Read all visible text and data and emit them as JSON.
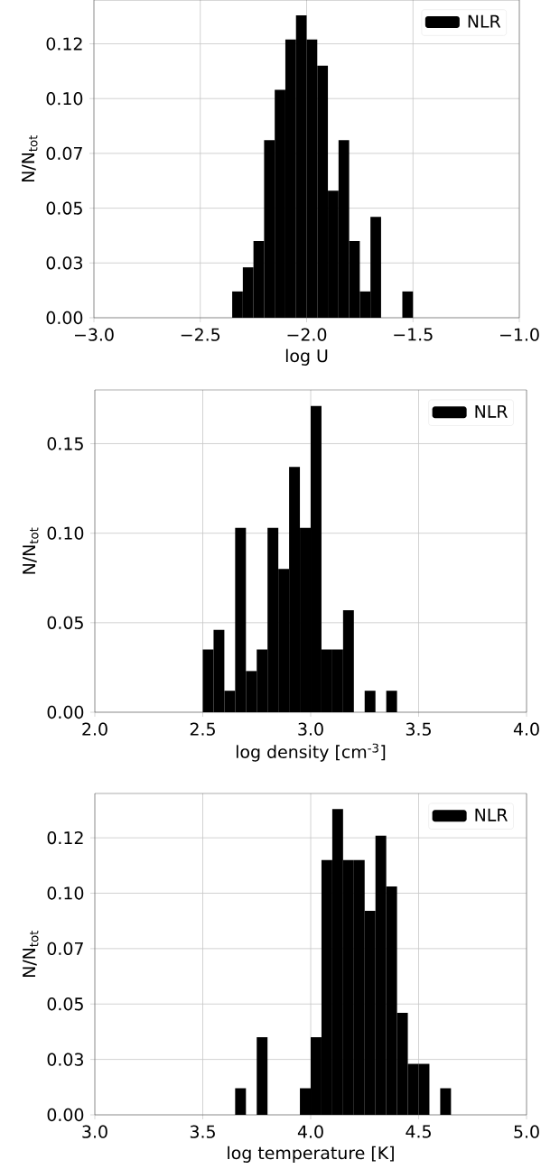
{
  "chart_data": [
    {
      "type": "histogram",
      "xlabel": "log U",
      "ylabel": "N/N$_{tot}$",
      "legend": "top right",
      "grid": true,
      "xlim": [
        -3.0,
        -1.0
      ],
      "xticks": [
        {
          "value": -3.0,
          "label": "−3.0"
        },
        {
          "value": -2.5,
          "label": "−2.5"
        },
        {
          "value": -2.0,
          "label": "−2.0"
        },
        {
          "value": -1.5,
          "label": "−1.5"
        },
        {
          "value": -1.0,
          "label": "−1.0"
        }
      ],
      "ylim": [
        0,
        0.145
      ],
      "yticks": [
        {
          "value": 0,
          "label": "0.00"
        },
        {
          "value": 0.025,
          "label": "0.03"
        },
        {
          "value": 0.05,
          "label": "0.05"
        },
        {
          "value": 0.075,
          "label": "0.07"
        },
        {
          "value": 0.1,
          "label": "0.10"
        },
        {
          "value": 0.125,
          "label": "0.12"
        }
      ],
      "bins": [
        -2.35,
        -2.3,
        -2.25,
        -2.2,
        -2.15,
        -2.1,
        -2.05,
        -2.0,
        -1.95,
        -1.9,
        -1.85,
        -1.8,
        -1.75,
        -1.7,
        -1.65,
        -1.6,
        -1.55,
        -1.5
      ],
      "series": [
        {
          "name": "NLR",
          "color": "#000000",
          "values": [
            0.012,
            0.023,
            0.035,
            0.081,
            0.104,
            0.127,
            0.138,
            0.127,
            0.115,
            0.058,
            0.081,
            0.035,
            0.012,
            0.046,
            0,
            0,
            0.012
          ]
        }
      ]
    },
    {
      "type": "histogram",
      "xlabel": "log density [cm$^{-3}$]",
      "ylabel": "N/N$_{tot}$",
      "legend": "top right",
      "grid": true,
      "xlim": [
        2.0,
        4.0
      ],
      "xticks": [
        {
          "value": 2.0,
          "label": "2.0"
        },
        {
          "value": 2.5,
          "label": "2.5"
        },
        {
          "value": 3.0,
          "label": "3.0"
        },
        {
          "value": 3.5,
          "label": "3.5"
        },
        {
          "value": 4.0,
          "label": "4.0"
        }
      ],
      "ylim": [
        0,
        0.18
      ],
      "yticks": [
        {
          "value": 0,
          "label": "0.00"
        },
        {
          "value": 0.05,
          "label": "0.05"
        },
        {
          "value": 0.1,
          "label": "0.10"
        },
        {
          "value": 0.15,
          "label": "0.15"
        }
      ],
      "bins": [
        2.5,
        2.55,
        2.6,
        2.65,
        2.7,
        2.75,
        2.8,
        2.85,
        2.9,
        2.95,
        3.0,
        3.05,
        3.1,
        3.15,
        3.2,
        3.25,
        3.3,
        3.35,
        3.4
      ],
      "series": [
        {
          "name": "NLR",
          "color": "#000000",
          "values": [
            0.035,
            0.046,
            0.012,
            0.103,
            0.023,
            0.035,
            0.103,
            0.08,
            0.137,
            0.103,
            0.171,
            0.035,
            0.035,
            0.057,
            0,
            0.012,
            0,
            0.012
          ]
        }
      ]
    },
    {
      "type": "histogram",
      "xlabel": "log temperature [K]",
      "ylabel": "N/N$_{tot}$",
      "legend": "top right",
      "grid": true,
      "xlim": [
        3.0,
        5.0
      ],
      "xticks": [
        {
          "value": 3.0,
          "label": "3.0"
        },
        {
          "value": 3.5,
          "label": "3.5"
        },
        {
          "value": 4.0,
          "label": "4.0"
        },
        {
          "value": 4.5,
          "label": "4.5"
        },
        {
          "value": 5.0,
          "label": "5.0"
        }
      ],
      "ylim": [
        0,
        0.145
      ],
      "yticks": [
        {
          "value": 0,
          "label": "0.00"
        },
        {
          "value": 0.025,
          "label": "0.03"
        },
        {
          "value": 0.05,
          "label": "0.05"
        },
        {
          "value": 0.075,
          "label": "0.07"
        },
        {
          "value": 0.1,
          "label": "0.10"
        },
        {
          "value": 0.125,
          "label": "0.12"
        }
      ],
      "bins": [
        3.65,
        3.7,
        3.75,
        3.8,
        3.85,
        3.9,
        3.95,
        4.0,
        4.05,
        4.1,
        4.15,
        4.2,
        4.25,
        4.3,
        4.35,
        4.4,
        4.45,
        4.5,
        4.55,
        4.6,
        4.65
      ],
      "series": [
        {
          "name": "NLR",
          "color": "#000000",
          "values": [
            0.012,
            0,
            0.035,
            0,
            0,
            0,
            0.012,
            0.035,
            0.115,
            0.138,
            0.115,
            0.115,
            0.092,
            0.126,
            0.103,
            0.046,
            0.023,
            0.023,
            0,
            0.012
          ]
        }
      ]
    }
  ]
}
